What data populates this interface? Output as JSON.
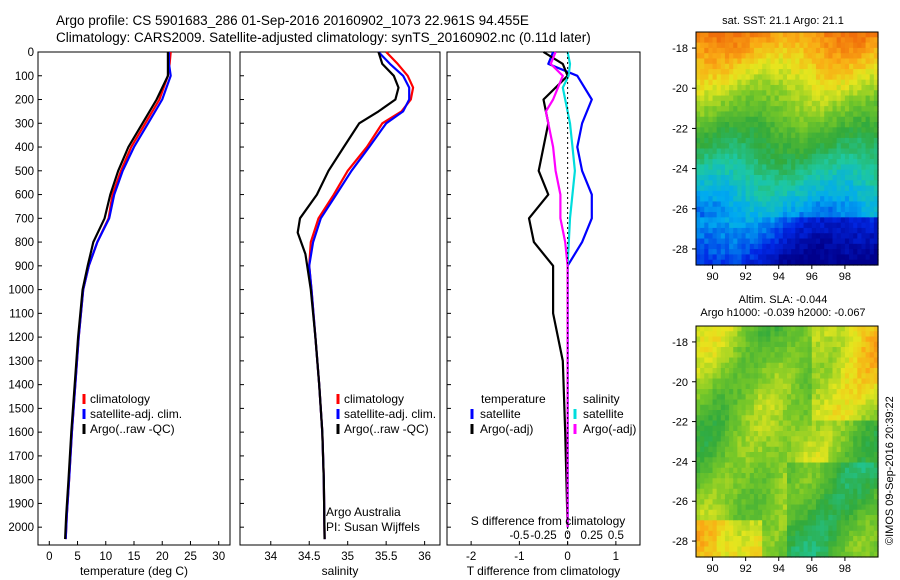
{
  "header": {
    "line1": "Argo profile: CS 5901683_286 01-Sep-2016 20160902_1073 22.961S 94.455E",
    "line2": "Climatology: CARS2009. Satellite-adjusted climatology: synTS_20160902.nc (0.11d later)"
  },
  "side_stamp": "©IMOS 09-Sep-2016 20:39:22",
  "colors": {
    "climatology": "#ff0000",
    "satellite": "#0000ff",
    "argo": "#000000",
    "argo_adj_sal": "#ff00ff",
    "sat_sal": "#00dddd"
  },
  "chart_data": [
    {
      "type": "line",
      "xlabel": "temperature (deg C)",
      "ylabel": "",
      "xlim": [
        -2,
        32
      ],
      "ylim": [
        2075,
        0
      ],
      "xticks": [
        "0",
        "5",
        "10",
        "15",
        "20",
        "25",
        "30"
      ],
      "yticks": [
        "0",
        "100",
        "200",
        "300",
        "400",
        "500",
        "600",
        "700",
        "800",
        "900",
        "1000",
        "1100",
        "1200",
        "1300",
        "1400",
        "1500",
        "1600",
        "1700",
        "1800",
        "1900",
        "2000"
      ],
      "legend": [
        "climatology",
        "satellite-adj. clim.",
        "Argo(..raw -QC)"
      ],
      "series": [
        {
          "name": "climatology",
          "color": "#ff0000",
          "points": [
            [
              21.5,
              0
            ],
            [
              21.3,
              50
            ],
            [
              21.0,
              100
            ],
            [
              19.5,
              200
            ],
            [
              17,
              300
            ],
            [
              14.5,
              400
            ],
            [
              12.7,
              500
            ],
            [
              11.2,
              600
            ],
            [
              10.5,
              700
            ],
            [
              8.5,
              800
            ],
            [
              7.0,
              900
            ],
            [
              6.0,
              1000
            ],
            [
              5.2,
              1200
            ],
            [
              4.6,
              1400
            ],
            [
              4.0,
              1600
            ],
            [
              3.5,
              1800
            ],
            [
              3.1,
              1950
            ],
            [
              2.9,
              2050
            ]
          ]
        },
        {
          "name": "satellite-adj. clim.",
          "color": "#0000ff",
          "points": [
            [
              21.2,
              0
            ],
            [
              21.2,
              50
            ],
            [
              21.5,
              100
            ],
            [
              20.0,
              200
            ],
            [
              17.5,
              300
            ],
            [
              15.0,
              400
            ],
            [
              13.0,
              500
            ],
            [
              11.5,
              600
            ],
            [
              10.6,
              700
            ],
            [
              8.5,
              800
            ],
            [
              7.0,
              900
            ],
            [
              6.0,
              1000
            ],
            [
              5.2,
              1200
            ],
            [
              4.6,
              1400
            ],
            [
              4.0,
              1600
            ],
            [
              3.5,
              1800
            ],
            [
              3.1,
              1950
            ],
            [
              2.9,
              2050
            ]
          ]
        },
        {
          "name": "Argo(..raw -QC)",
          "color": "#000000",
          "points": [
            [
              21.0,
              0
            ],
            [
              21.0,
              50
            ],
            [
              21.0,
              100
            ],
            [
              19.0,
              200
            ],
            [
              16.5,
              300
            ],
            [
              14.0,
              400
            ],
            [
              12.2,
              500
            ],
            [
              10.8,
              600
            ],
            [
              9.8,
              700
            ],
            [
              7.8,
              800
            ],
            [
              6.8,
              900
            ],
            [
              5.9,
              1000
            ],
            [
              5.1,
              1200
            ],
            [
              4.5,
              1400
            ],
            [
              3.9,
              1600
            ],
            [
              3.4,
              1800
            ],
            [
              3.0,
              1950
            ],
            [
              2.8,
              2050
            ]
          ]
        }
      ]
    },
    {
      "type": "line",
      "xlabel": "salinity",
      "ylabel": "",
      "xlim": [
        33.6,
        36.2
      ],
      "ylim": [
        2075,
        0
      ],
      "xticks": [
        "34",
        "34.5",
        "35",
        "35.5",
        "36"
      ],
      "legend": [
        "climatology",
        "satellite-adj. clim.",
        "Argo(..raw -QC)"
      ],
      "annotations": [
        "Argo Australia",
        "PI: Susan Wijffels"
      ],
      "series": [
        {
          "name": "climatology",
          "color": "#ff0000",
          "points": [
            [
              35.5,
              0
            ],
            [
              35.65,
              50
            ],
            [
              35.78,
              100
            ],
            [
              35.85,
              150
            ],
            [
              35.82,
              200
            ],
            [
              35.7,
              250
            ],
            [
              35.45,
              300
            ],
            [
              35.25,
              400
            ],
            [
              35.0,
              500
            ],
            [
              34.82,
              600
            ],
            [
              34.62,
              700
            ],
            [
              34.52,
              800
            ],
            [
              34.5,
              900
            ],
            [
              34.53,
              1000
            ],
            [
              34.58,
              1200
            ],
            [
              34.63,
              1400
            ],
            [
              34.67,
              1600
            ],
            [
              34.69,
              1800
            ],
            [
              34.7,
              2050
            ]
          ]
        },
        {
          "name": "satellite-adj. clim.",
          "color": "#0000ff",
          "points": [
            [
              35.4,
              0
            ],
            [
              35.55,
              50
            ],
            [
              35.72,
              100
            ],
            [
              35.8,
              150
            ],
            [
              35.8,
              200
            ],
            [
              35.72,
              250
            ],
            [
              35.5,
              300
            ],
            [
              35.28,
              400
            ],
            [
              35.05,
              500
            ],
            [
              34.85,
              600
            ],
            [
              34.65,
              700
            ],
            [
              34.55,
              800
            ],
            [
              34.5,
              900
            ],
            [
              34.53,
              1000
            ],
            [
              34.58,
              1200
            ],
            [
              34.63,
              1400
            ],
            [
              34.67,
              1600
            ],
            [
              34.69,
              1800
            ],
            [
              34.7,
              2050
            ]
          ]
        },
        {
          "name": "Argo(..raw -QC)",
          "color": "#000000",
          "points": [
            [
              35.4,
              0
            ],
            [
              35.45,
              50
            ],
            [
              35.6,
              100
            ],
            [
              35.66,
              150
            ],
            [
              35.62,
              200
            ],
            [
              35.4,
              250
            ],
            [
              35.15,
              300
            ],
            [
              34.95,
              400
            ],
            [
              34.75,
              500
            ],
            [
              34.6,
              600
            ],
            [
              34.38,
              700
            ],
            [
              34.35,
              760
            ],
            [
              34.45,
              850
            ],
            [
              34.52,
              1000
            ],
            [
              34.58,
              1200
            ],
            [
              34.63,
              1400
            ],
            [
              34.67,
              1600
            ],
            [
              34.69,
              1800
            ],
            [
              34.7,
              2050
            ]
          ]
        }
      ]
    },
    {
      "type": "line",
      "xlabel": "T difference from climatology",
      "x2label": "S difference from climatology",
      "ylabel": "",
      "xlim": [
        -2.5,
        1.5
      ],
      "ylim": [
        2075,
        0
      ],
      "xticks": [
        "-2",
        "-1",
        "0",
        "1"
      ],
      "x2ticks": [
        "-0.5",
        "-0.25",
        "0",
        "0.25",
        "0.5"
      ],
      "legend_groups": [
        {
          "title": "temperature",
          "items": [
            "satellite",
            "Argo(-adj)"
          ]
        },
        {
          "title": "salinity",
          "items": [
            "satellite",
            "Argo(-adj)"
          ]
        }
      ],
      "series": [
        {
          "name": "temperature satellite",
          "color": "#0000ff",
          "points": [
            [
              -0.3,
              0
            ],
            [
              -0.4,
              50
            ],
            [
              0.2,
              100
            ],
            [
              0.5,
              200
            ],
            [
              0.3,
              300
            ],
            [
              0.2,
              400
            ],
            [
              0.3,
              500
            ],
            [
              0.5,
              600
            ],
            [
              0.5,
              700
            ],
            [
              0.3,
              800
            ],
            [
              0.0,
              900
            ],
            [
              0.0,
              1200
            ],
            [
              0.0,
              1600
            ],
            [
              0.0,
              2000
            ]
          ]
        },
        {
          "name": "temperature Argo(-adj)",
          "color": "#000000",
          "points": [
            [
              -0.5,
              0
            ],
            [
              -0.1,
              50
            ],
            [
              0.0,
              100
            ],
            [
              -0.5,
              200
            ],
            [
              -0.4,
              300
            ],
            [
              -0.5,
              400
            ],
            [
              -0.6,
              500
            ],
            [
              -0.4,
              600
            ],
            [
              -0.8,
              700
            ],
            [
              -0.7,
              800
            ],
            [
              -0.3,
              900
            ],
            [
              -0.3,
              1100
            ],
            [
              -0.1,
              1300
            ],
            [
              -0.05,
              1600
            ],
            [
              0.0,
              2000
            ]
          ]
        },
        {
          "name": "salinity satellite",
          "color": "#00dddd",
          "points": [
            [
              0.0,
              0
            ],
            [
              0.05,
              50
            ],
            [
              0.02,
              100
            ],
            [
              -0.1,
              150
            ],
            [
              -0.05,
              200
            ],
            [
              0.05,
              300
            ],
            [
              0.1,
              400
            ],
            [
              0.15,
              500
            ],
            [
              0.05,
              700
            ],
            [
              0.0,
              900
            ],
            [
              0.0,
              1500
            ],
            [
              0.0,
              2000
            ]
          ]
        },
        {
          "name": "salinity Argo(-adj)",
          "color": "#ff00ff",
          "points": [
            [
              -0.25,
              0
            ],
            [
              -0.35,
              50
            ],
            [
              -0.1,
              100
            ],
            [
              -0.3,
              200
            ],
            [
              -0.45,
              250
            ],
            [
              -0.4,
              300
            ],
            [
              -0.3,
              400
            ],
            [
              -0.25,
              500
            ],
            [
              -0.15,
              600
            ],
            [
              -0.15,
              700
            ],
            [
              -0.05,
              800
            ],
            [
              0.0,
              900
            ],
            [
              0.0,
              1500
            ],
            [
              0.0,
              2000
            ]
          ]
        }
      ]
    },
    {
      "type": "heatmap",
      "title": "sat. SST: 21.1  Argo: 21.1",
      "xlim": [
        89,
        100
      ],
      "ylim": [
        -28.8,
        -17.2
      ],
      "xticks": [
        "90",
        "92",
        "94",
        "96",
        "98"
      ],
      "yticks": [
        "-18",
        "-20",
        "-22",
        "-24",
        "-26",
        "-28"
      ],
      "field": "sea surface temperature (warm north, cool south)"
    },
    {
      "type": "heatmap",
      "title_line1": "Altim. SLA: -0.044",
      "title_line2": "Argo h1000: -0.039 h2000: -0.067",
      "xlim": [
        89,
        100
      ],
      "ylim": [
        -28.8,
        -17.2
      ],
      "xticks": [
        "90",
        "92",
        "94",
        "96",
        "98"
      ],
      "yticks": [
        "-18",
        "-20",
        "-22",
        "-24",
        "-26",
        "-28"
      ],
      "field": "sea level anomaly (mostly green/yellow)"
    }
  ]
}
